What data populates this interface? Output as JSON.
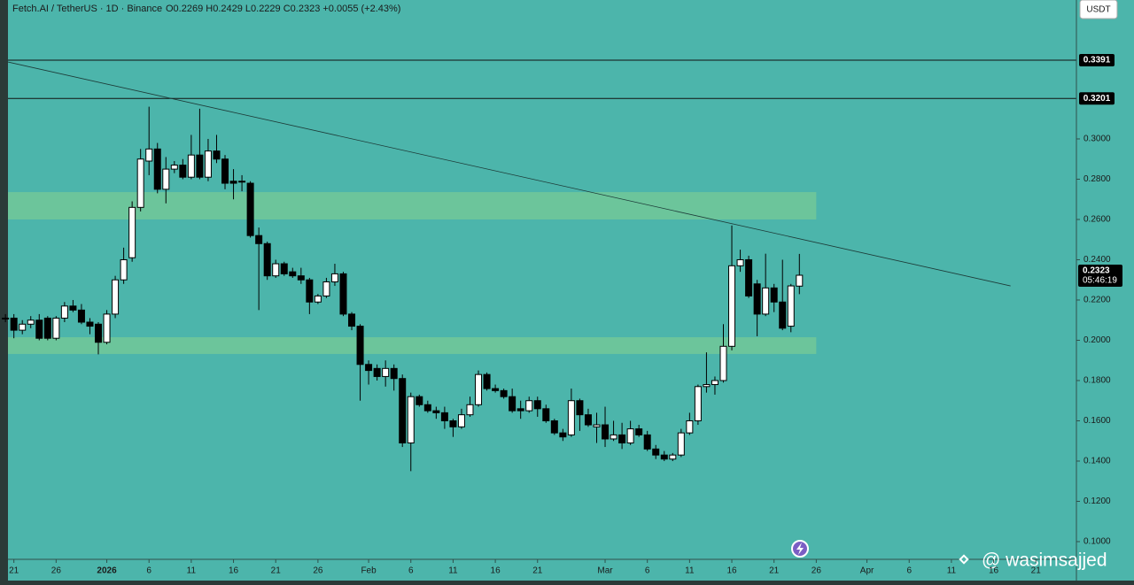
{
  "header": {
    "symbol": "Fetch.AI / TetherUS · 1D · Binance",
    "ohlc": "O0.2269 H0.2429 L0.2229 C0.2323 +0.0055 (+2.43%)",
    "currency": "USDT",
    "watermark": "@ wasimsajjed"
  },
  "chart_data": {
    "type": "candlestick",
    "open": [
      0.211,
      0.211,
      0.205,
      0.208,
      0.21,
      0.211,
      0.201,
      0.211,
      0.217,
      0.215,
      0.209,
      0.208,
      0.199,
      0.213,
      0.23,
      0.241,
      0.266,
      0.289,
      0.295,
      0.275,
      0.285,
      0.287,
      0.281,
      0.292,
      0.281,
      0.294,
      0.29,
      0.279,
      0.279,
      0.278,
      0.252,
      0.248,
      0.232,
      0.238,
      0.234,
      0.232,
      0.23,
      0.219,
      0.222,
      0.229,
      0.233,
      0.213,
      0.207,
      0.188,
      0.186,
      0.182,
      0.186,
      0.181,
      0.149,
      0.172,
      0.168,
      0.165,
      0.164,
      0.16,
      0.157,
      0.163,
      0.168,
      0.183,
      0.176,
      0.175,
      0.172,
      0.166,
      0.165,
      0.17,
      0.166,
      0.16,
      0.154,
      0.153,
      0.17,
      0.163,
      0.157,
      0.158,
      0.151,
      0.153,
      0.149,
      0.156,
      0.153,
      0.146,
      0.143,
      0.141,
      0.143,
      0.154,
      0.16,
      0.177,
      0.178,
      0.18,
      0.197,
      0.237,
      0.24,
      0.228,
      0.213,
      0.226,
      0.219,
      0.207,
      0.2269
    ],
    "high": [
      0.213,
      0.213,
      0.21,
      0.212,
      0.213,
      0.212,
      0.212,
      0.219,
      0.22,
      0.218,
      0.211,
      0.209,
      0.215,
      0.232,
      0.246,
      0.269,
      0.295,
      0.316,
      0.298,
      0.291,
      0.289,
      0.29,
      0.302,
      0.315,
      0.3,
      0.302,
      0.292,
      0.285,
      0.282,
      0.279,
      0.256,
      0.249,
      0.24,
      0.239,
      0.236,
      0.236,
      0.231,
      0.223,
      0.231,
      0.238,
      0.234,
      0.214,
      0.208,
      0.19,
      0.188,
      0.19,
      0.188,
      0.183,
      0.174,
      0.173,
      0.17,
      0.167,
      0.167,
      0.161,
      0.166,
      0.172,
      0.185,
      0.184,
      0.178,
      0.176,
      0.176,
      0.17,
      0.172,
      0.172,
      0.168,
      0.161,
      0.156,
      0.176,
      0.171,
      0.166,
      0.164,
      0.167,
      0.16,
      0.159,
      0.16,
      0.158,
      0.155,
      0.148,
      0.145,
      0.144,
      0.156,
      0.164,
      0.178,
      0.194,
      0.182,
      0.208,
      0.257,
      0.245,
      0.242,
      0.23,
      0.243,
      0.228,
      0.24,
      0.228,
      0.2429
    ],
    "low": [
      0.209,
      0.201,
      0.203,
      0.206,
      0.2,
      0.2,
      0.2,
      0.209,
      0.214,
      0.208,
      0.203,
      0.193,
      0.198,
      0.211,
      0.228,
      0.239,
      0.264,
      0.282,
      0.273,
      0.268,
      0.283,
      0.28,
      0.28,
      0.28,
      0.279,
      0.288,
      0.275,
      0.27,
      0.274,
      0.251,
      0.215,
      0.23,
      0.231,
      0.232,
      0.231,
      0.228,
      0.213,
      0.218,
      0.221,
      0.227,
      0.212,
      0.205,
      0.17,
      0.178,
      0.18,
      0.177,
      0.175,
      0.147,
      0.135,
      0.167,
      0.164,
      0.161,
      0.156,
      0.152,
      0.156,
      0.162,
      0.167,
      0.175,
      0.174,
      0.171,
      0.164,
      0.161,
      0.164,
      0.162,
      0.159,
      0.153,
      0.15,
      0.152,
      0.155,
      0.157,
      0.149,
      0.147,
      0.15,
      0.146,
      0.148,
      0.152,
      0.145,
      0.141,
      0.14,
      0.14,
      0.142,
      0.153,
      0.158,
      0.174,
      0.173,
      0.179,
      0.195,
      0.234,
      0.221,
      0.202,
      0.212,
      0.214,
      0.205,
      0.204,
      0.2229
    ],
    "close": [
      0.211,
      0.205,
      0.208,
      0.21,
      0.201,
      0.201,
      0.211,
      0.217,
      0.215,
      0.209,
      0.207,
      0.199,
      0.213,
      0.23,
      0.24,
      0.266,
      0.29,
      0.295,
      0.275,
      0.285,
      0.287,
      0.281,
      0.292,
      0.281,
      0.294,
      0.29,
      0.278,
      0.278,
      0.279,
      0.252,
      0.248,
      0.232,
      0.238,
      0.233,
      0.232,
      0.23,
      0.219,
      0.222,
      0.229,
      0.233,
      0.213,
      0.207,
      0.188,
      0.185,
      0.182,
      0.186,
      0.181,
      0.149,
      0.172,
      0.168,
      0.165,
      0.164,
      0.16,
      0.157,
      0.163,
      0.168,
      0.183,
      0.176,
      0.175,
      0.172,
      0.165,
      0.165,
      0.17,
      0.166,
      0.16,
      0.154,
      0.152,
      0.17,
      0.163,
      0.158,
      0.158,
      0.151,
      0.153,
      0.149,
      0.156,
      0.153,
      0.146,
      0.143,
      0.141,
      0.143,
      0.154,
      0.16,
      0.177,
      0.178,
      0.18,
      0.197,
      0.237,
      0.24,
      0.222,
      0.213,
      0.226,
      0.219,
      0.206,
      0.227,
      0.2323
    ],
    "up_color": "#ffffff",
    "down_color": "#000000",
    "xlim": [
      0.3,
      126.8
    ],
    "xticks": [
      {
        "value": 1,
        "label": "21"
      },
      {
        "value": 6,
        "label": "26"
      },
      {
        "value": 12,
        "label": "2026"
      },
      {
        "value": 17,
        "label": "6"
      },
      {
        "value": 22,
        "label": "11"
      },
      {
        "value": 27,
        "label": "16"
      },
      {
        "value": 32,
        "label": "21"
      },
      {
        "value": 37,
        "label": "26"
      },
      {
        "value": 43,
        "label": "Feb"
      },
      {
        "value": 48,
        "label": "6"
      },
      {
        "value": 53,
        "label": "11"
      },
      {
        "value": 58,
        "label": "16"
      },
      {
        "value": 63,
        "label": "21"
      },
      {
        "value": 71,
        "label": "Mar"
      },
      {
        "value": 76,
        "label": "6"
      },
      {
        "value": 81,
        "label": "11"
      },
      {
        "value": 86,
        "label": "16"
      },
      {
        "value": 91,
        "label": "21"
      },
      {
        "value": 96,
        "label": "26"
      },
      {
        "value": 102,
        "label": "Apr"
      },
      {
        "value": 107,
        "label": "6"
      },
      {
        "value": 112,
        "label": "11"
      },
      {
        "value": 117,
        "label": "16"
      },
      {
        "value": 122,
        "label": "21"
      }
    ],
    "ylim": [
      0.0912,
      0.369
    ],
    "yticks": [
      {
        "value": 0.1,
        "label": "0.1000"
      },
      {
        "value": 0.12,
        "label": "0.1200"
      },
      {
        "value": 0.14,
        "label": "0.1400"
      },
      {
        "value": 0.16,
        "label": "0.1600"
      },
      {
        "value": 0.18,
        "label": "0.1800"
      },
      {
        "value": 0.2,
        "label": "0.2000"
      },
      {
        "value": 0.22,
        "label": "0.2200"
      },
      {
        "value": 0.24,
        "label": "0.2400"
      },
      {
        "value": 0.26,
        "label": "0.2600"
      },
      {
        "value": 0.28,
        "label": "0.2800"
      },
      {
        "value": 0.3,
        "label": "0.3000"
      }
    ],
    "hlines": [
      {
        "value": 0.3391,
        "label": "0.3391"
      },
      {
        "value": 0.3201,
        "label": "0.3201"
      }
    ],
    "trendline": {
      "x": [
        0.3,
        119
      ],
      "y": [
        0.3382,
        0.227
      ]
    },
    "zones": [
      {
        "x_end": 96,
        "y": [
          0.26,
          0.2736
        ]
      },
      {
        "x_end": 96,
        "y": [
          0.1932,
          0.2015
        ]
      }
    ],
    "zone_color": "#6cc59b",
    "last_price": {
      "value": 0.2323,
      "label": "0.2323"
    },
    "countdown": "05:46:19"
  }
}
